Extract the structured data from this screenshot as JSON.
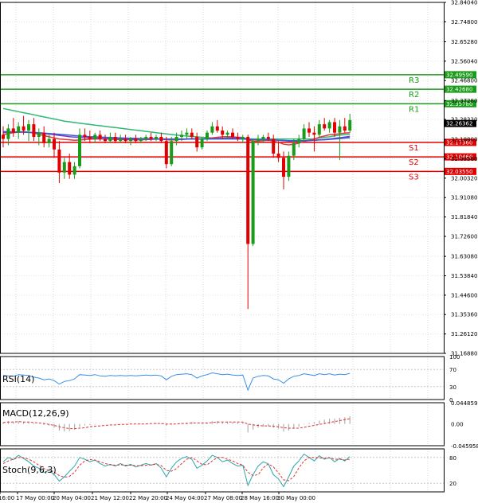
{
  "chart_data": {
    "type": "candlestick",
    "main_price_axis": {
      "ticks": [
        "32.84040",
        "32.74800",
        "32.65280",
        "32.56040",
        "32.46800",
        "32.37280",
        "32.28320",
        "32.18800",
        "32.09560",
        "32.00320",
        "31.91080",
        "31.81840",
        "31.72600",
        "31.63080",
        "31.53840",
        "31.44600",
        "31.35360",
        "31.26120",
        "31.16880"
      ],
      "ylim": [
        31.1688,
        32.8404
      ]
    },
    "current_price": "32.26362",
    "levels": [
      {
        "name": "R3",
        "value": 32.4959,
        "label": "32.49590",
        "color": "#1a9c1a"
      },
      {
        "name": "R2",
        "value": 32.4268,
        "label": "32.42680",
        "color": "#1a9c1a"
      },
      {
        "name": "R1",
        "value": 32.3578,
        "label": "32.35780",
        "color": "#1a9c1a"
      },
      {
        "name": "S1",
        "value": 32.1736,
        "label": "32.17360",
        "color": "#e00000"
      },
      {
        "name": "S2",
        "value": 32.1046,
        "label": "32.10460",
        "color": "#e00000"
      },
      {
        "name": "S3",
        "value": 32.0355,
        "label": "32.03550",
        "color": "#e00000"
      }
    ],
    "candles": [
      {
        "o": 32.21,
        "h": 32.25,
        "l": 32.15,
        "c": 32.19
      },
      {
        "o": 32.19,
        "h": 32.26,
        "l": 32.16,
        "c": 32.24
      },
      {
        "o": 32.24,
        "h": 32.29,
        "l": 32.2,
        "c": 32.22
      },
      {
        "o": 32.22,
        "h": 32.27,
        "l": 32.19,
        "c": 32.25
      },
      {
        "o": 32.25,
        "h": 32.3,
        "l": 32.21,
        "c": 32.23
      },
      {
        "o": 32.23,
        "h": 32.28,
        "l": 32.18,
        "c": 32.26
      },
      {
        "o": 32.26,
        "h": 32.29,
        "l": 32.18,
        "c": 32.2
      },
      {
        "o": 32.2,
        "h": 32.24,
        "l": 32.16,
        "c": 32.22
      },
      {
        "o": 32.22,
        "h": 32.25,
        "l": 32.15,
        "c": 32.17
      },
      {
        "o": 32.17,
        "h": 32.21,
        "l": 32.15,
        "c": 32.19
      },
      {
        "o": 32.19,
        "h": 32.22,
        "l": 32.1,
        "c": 32.14
      },
      {
        "o": 32.14,
        "h": 32.18,
        "l": 31.98,
        "c": 32.03
      },
      {
        "o": 32.03,
        "h": 32.1,
        "l": 32.0,
        "c": 32.08
      },
      {
        "o": 32.08,
        "h": 32.12,
        "l": 32.0,
        "c": 32.02
      },
      {
        "o": 32.02,
        "h": 32.08,
        "l": 32.0,
        "c": 32.06
      },
      {
        "o": 32.06,
        "h": 32.24,
        "l": 32.05,
        "c": 32.21
      },
      {
        "o": 32.21,
        "h": 32.24,
        "l": 32.18,
        "c": 32.2
      },
      {
        "o": 32.2,
        "h": 32.23,
        "l": 32.17,
        "c": 32.19
      },
      {
        "o": 32.19,
        "h": 32.22,
        "l": 32.17,
        "c": 32.21
      },
      {
        "o": 32.21,
        "h": 32.23,
        "l": 32.18,
        "c": 32.19
      },
      {
        "o": 32.19,
        "h": 32.21,
        "l": 32.17,
        "c": 32.18
      },
      {
        "o": 32.18,
        "h": 32.22,
        "l": 32.17,
        "c": 32.2
      },
      {
        "o": 32.2,
        "h": 32.22,
        "l": 32.17,
        "c": 32.18
      },
      {
        "o": 32.18,
        "h": 32.21,
        "l": 32.17,
        "c": 32.19
      },
      {
        "o": 32.19,
        "h": 32.21,
        "l": 32.17,
        "c": 32.18
      },
      {
        "o": 32.18,
        "h": 32.2,
        "l": 32.16,
        "c": 32.19
      },
      {
        "o": 32.19,
        "h": 32.21,
        "l": 32.17,
        "c": 32.18
      },
      {
        "o": 32.18,
        "h": 32.2,
        "l": 32.17,
        "c": 32.19
      },
      {
        "o": 32.19,
        "h": 32.21,
        "l": 32.18,
        "c": 32.2
      },
      {
        "o": 32.2,
        "h": 32.22,
        "l": 32.18,
        "c": 32.19
      },
      {
        "o": 32.19,
        "h": 32.21,
        "l": 32.18,
        "c": 32.2
      },
      {
        "o": 32.2,
        "h": 32.22,
        "l": 32.17,
        "c": 32.18
      },
      {
        "o": 32.18,
        "h": 32.2,
        "l": 32.05,
        "c": 32.07
      },
      {
        "o": 32.07,
        "h": 32.2,
        "l": 32.06,
        "c": 32.18
      },
      {
        "o": 32.18,
        "h": 32.22,
        "l": 32.16,
        "c": 32.2
      },
      {
        "o": 32.2,
        "h": 32.23,
        "l": 32.18,
        "c": 32.21
      },
      {
        "o": 32.21,
        "h": 32.24,
        "l": 32.19,
        "c": 32.22
      },
      {
        "o": 32.22,
        "h": 32.24,
        "l": 32.19,
        "c": 32.2
      },
      {
        "o": 32.2,
        "h": 32.22,
        "l": 32.13,
        "c": 32.15
      },
      {
        "o": 32.15,
        "h": 32.2,
        "l": 32.14,
        "c": 32.19
      },
      {
        "o": 32.19,
        "h": 32.23,
        "l": 32.18,
        "c": 32.22
      },
      {
        "o": 32.22,
        "h": 32.27,
        "l": 32.21,
        "c": 32.25
      },
      {
        "o": 32.25,
        "h": 32.28,
        "l": 32.22,
        "c": 32.23
      },
      {
        "o": 32.23,
        "h": 32.25,
        "l": 32.19,
        "c": 32.21
      },
      {
        "o": 32.21,
        "h": 32.23,
        "l": 32.19,
        "c": 32.22
      },
      {
        "o": 32.22,
        "h": 32.24,
        "l": 32.19,
        "c": 32.2
      },
      {
        "o": 32.2,
        "h": 32.22,
        "l": 32.18,
        "c": 32.19
      },
      {
        "o": 32.19,
        "h": 32.21,
        "l": 32.17,
        "c": 32.2
      },
      {
        "o": 32.2,
        "h": 32.21,
        "l": 31.38,
        "c": 31.69
      },
      {
        "o": 31.69,
        "h": 32.19,
        "l": 31.68,
        "c": 32.18
      },
      {
        "o": 32.18,
        "h": 32.21,
        "l": 32.16,
        "c": 32.19
      },
      {
        "o": 32.19,
        "h": 32.21,
        "l": 32.17,
        "c": 32.2
      },
      {
        "o": 32.2,
        "h": 32.22,
        "l": 32.18,
        "c": 32.19
      },
      {
        "o": 32.19,
        "h": 32.21,
        "l": 32.1,
        "c": 32.12
      },
      {
        "o": 32.12,
        "h": 32.18,
        "l": 32.08,
        "c": 32.1
      },
      {
        "o": 32.1,
        "h": 32.13,
        "l": 31.95,
        "c": 32.01
      },
      {
        "o": 32.01,
        "h": 32.13,
        "l": 31.99,
        "c": 32.11
      },
      {
        "o": 32.11,
        "h": 32.19,
        "l": 32.09,
        "c": 32.17
      },
      {
        "o": 32.17,
        "h": 32.21,
        "l": 32.15,
        "c": 32.19
      },
      {
        "o": 32.19,
        "h": 32.26,
        "l": 32.18,
        "c": 32.24
      },
      {
        "o": 32.24,
        "h": 32.27,
        "l": 32.2,
        "c": 32.22
      },
      {
        "o": 32.22,
        "h": 32.25,
        "l": 32.13,
        "c": 32.21
      },
      {
        "o": 32.21,
        "h": 32.28,
        "l": 32.2,
        "c": 32.26
      },
      {
        "o": 32.26,
        "h": 32.29,
        "l": 32.23,
        "c": 32.24
      },
      {
        "o": 32.24,
        "h": 32.28,
        "l": 32.22,
        "c": 32.27
      },
      {
        "o": 32.27,
        "h": 32.29,
        "l": 32.2,
        "c": 32.22
      },
      {
        "o": 32.22,
        "h": 32.28,
        "l": 32.09,
        "c": 32.25
      },
      {
        "o": 32.25,
        "h": 32.29,
        "l": 32.22,
        "c": 32.23
      },
      {
        "o": 32.23,
        "h": 32.31,
        "l": 32.22,
        "c": 32.28
      }
    ],
    "moving_averages": [
      {
        "color": "#2eb872",
        "values": [
          32.335,
          32.33,
          32.325,
          32.32,
          32.315,
          32.31,
          32.305,
          32.3,
          32.295,
          32.29,
          32.285,
          32.28,
          32.275,
          32.272,
          32.268,
          32.265,
          32.262,
          32.259,
          32.256,
          32.253,
          32.25,
          32.247,
          32.244,
          32.241,
          32.238,
          32.235,
          32.232,
          32.229,
          32.226,
          32.223,
          32.22,
          32.217,
          32.214,
          32.211,
          32.208,
          32.206,
          32.204,
          32.202,
          32.2,
          32.198,
          32.196,
          32.195,
          32.194,
          32.193,
          32.192,
          32.191,
          32.19,
          32.19,
          32.19,
          32.19,
          32.19,
          32.19,
          32.19,
          32.19,
          32.19,
          32.19,
          32.19,
          32.19,
          32.19,
          32.19,
          32.19,
          32.19,
          32.195,
          32.198,
          32.2,
          32.205,
          32.208,
          32.21,
          32.212
        ]
      },
      {
        "color": "#e03a3a",
        "values": [
          32.21,
          32.215,
          32.22,
          32.222,
          32.224,
          32.222,
          32.218,
          32.212,
          32.206,
          32.2,
          32.195,
          32.19,
          32.188,
          32.186,
          32.184,
          32.185,
          32.187,
          32.189,
          32.19,
          32.19,
          32.19,
          32.189,
          32.188,
          32.187,
          32.187,
          32.186,
          32.186,
          32.186,
          32.187,
          32.188,
          32.19,
          32.19,
          32.186,
          32.185,
          32.186,
          32.188,
          32.19,
          32.192,
          32.19,
          32.19,
          32.192,
          32.195,
          32.198,
          32.2,
          32.201,
          32.2,
          32.198,
          32.197,
          32.185,
          32.18,
          32.18,
          32.182,
          32.184,
          32.18,
          32.174,
          32.165,
          32.162,
          32.165,
          32.17,
          32.178,
          32.184,
          32.19,
          32.198,
          32.204,
          32.21,
          32.212,
          32.215,
          32.218,
          32.22
        ]
      },
      {
        "color": "#7a3cc8",
        "values": [
          32.22,
          32.221,
          32.222,
          32.222,
          32.222,
          32.221,
          32.22,
          32.218,
          32.216,
          32.213,
          32.21,
          32.207,
          32.204,
          32.201,
          32.199,
          32.197,
          32.196,
          32.195,
          32.194,
          32.193,
          32.192,
          32.191,
          32.19,
          32.19,
          32.189,
          32.189,
          32.189,
          32.189,
          32.189,
          32.189,
          32.189,
          32.189,
          32.188,
          32.188,
          32.188,
          32.188,
          32.189,
          32.19,
          32.19,
          32.19,
          32.19,
          32.191,
          32.192,
          32.193,
          32.194,
          32.195,
          32.195,
          32.195,
          32.19,
          32.188,
          32.187,
          32.187,
          32.187,
          32.186,
          32.184,
          32.182,
          32.18,
          32.18,
          32.18,
          32.181,
          32.182,
          32.184,
          32.186,
          32.188,
          32.19,
          32.193,
          32.196,
          32.199,
          32.202
        ]
      },
      {
        "color": "#3b5bd6",
        "values": [
          32.225,
          32.225,
          32.224,
          32.224,
          32.223,
          32.222,
          32.221,
          32.22,
          32.218,
          32.216,
          32.214,
          32.212,
          32.21,
          32.208,
          32.206,
          32.204,
          32.203,
          32.201,
          32.2,
          32.199,
          32.198,
          32.197,
          32.196,
          32.195,
          32.194,
          32.193,
          32.193,
          32.192,
          32.192,
          32.191,
          32.191,
          32.19,
          32.19,
          32.19,
          32.19,
          32.19,
          32.19,
          32.19,
          32.19,
          32.19,
          32.19,
          32.19,
          32.19,
          32.19,
          32.19,
          32.19,
          32.19,
          32.19,
          32.188,
          32.187,
          32.186,
          32.186,
          32.186,
          32.185,
          32.184,
          32.183,
          32.182,
          32.182,
          32.182,
          32.182,
          32.183,
          32.184,
          32.185,
          32.186,
          32.188,
          32.19,
          32.192,
          32.194,
          32.196
        ]
      }
    ],
    "rsi": {
      "label": "RSI(14)",
      "ticks": [
        "100",
        "70",
        "30",
        "0"
      ],
      "ylim": [
        0,
        100
      ],
      "values": [
        56,
        55,
        54,
        58,
        57,
        56,
        52,
        50,
        46,
        48,
        44,
        36,
        42,
        44,
        48,
        58,
        57,
        56,
        58,
        55,
        54,
        56,
        55,
        56,
        55,
        56,
        55,
        56,
        57,
        56,
        57,
        55,
        46,
        54,
        58,
        59,
        60,
        58,
        50,
        55,
        58,
        62,
        60,
        58,
        59,
        57,
        56,
        57,
        22,
        50,
        54,
        56,
        55,
        48,
        46,
        38,
        48,
        54,
        56,
        60,
        58,
        56,
        60,
        58,
        60,
        57,
        59,
        58,
        61
      ]
    },
    "macd": {
      "label": "MACD(12,26,9)",
      "ticks": [
        "0.044859",
        "0.00",
        "-0.045958"
      ],
      "ylim": [
        -0.045958,
        0.044859
      ],
      "histogram": [
        0.004,
        0.006,
        0.005,
        0.006,
        0.004,
        0.003,
        0.002,
        0.0,
        -0.002,
        -0.004,
        -0.008,
        -0.014,
        -0.016,
        -0.015,
        -0.012,
        -0.006,
        -0.003,
        -0.002,
        -0.001,
        0.0,
        0.0,
        0.0,
        0.0,
        0.0,
        0.0,
        0.0,
        0.0,
        0.001,
        0.001,
        0.001,
        0.002,
        0.001,
        -0.004,
        -0.002,
        0.0,
        0.002,
        0.003,
        0.004,
        0.0,
        0.001,
        0.003,
        0.006,
        0.006,
        0.005,
        0.005,
        0.004,
        0.003,
        0.003,
        -0.018,
        -0.012,
        -0.008,
        -0.006,
        -0.005,
        -0.008,
        -0.01,
        -0.016,
        -0.014,
        -0.01,
        -0.006,
        -0.001,
        0.002,
        0.004,
        0.007,
        0.009,
        0.011,
        0.011,
        0.013,
        0.014,
        0.016
      ],
      "signal": [
        0.003,
        0.004,
        0.004,
        0.005,
        0.004,
        0.004,
        0.003,
        0.002,
        0.001,
        -0.001,
        -0.003,
        -0.006,
        -0.008,
        -0.01,
        -0.01,
        -0.009,
        -0.008,
        -0.006,
        -0.005,
        -0.004,
        -0.003,
        -0.002,
        -0.002,
        -0.001,
        -0.001,
        0.0,
        0.0,
        0.0,
        0.0,
        0.001,
        0.001,
        0.001,
        0.0,
        0.0,
        0.0,
        0.001,
        0.001,
        0.002,
        0.002,
        0.002,
        0.002,
        0.003,
        0.004,
        0.004,
        0.004,
        0.004,
        0.004,
        0.004,
        0.0,
        -0.002,
        -0.003,
        -0.004,
        -0.004,
        -0.005,
        -0.006,
        -0.008,
        -0.009,
        -0.009,
        -0.009,
        -0.007,
        -0.005,
        -0.003,
        -0.001,
        0.001,
        0.003,
        0.005,
        0.007,
        0.009,
        0.011
      ]
    },
    "stoch": {
      "label": "Stoch(9,6,3)",
      "ticks": [
        "80",
        "20"
      ],
      "ylim": [
        0,
        100
      ],
      "main": [
        70,
        80,
        75,
        85,
        78,
        70,
        60,
        55,
        45,
        50,
        40,
        25,
        35,
        48,
        60,
        80,
        76,
        70,
        74,
        66,
        60,
        64,
        60,
        66,
        60,
        64,
        58,
        62,
        66,
        62,
        66,
        55,
        35,
        55,
        70,
        78,
        82,
        76,
        55,
        62,
        72,
        85,
        80,
        70,
        74,
        66,
        60,
        62,
        15,
        40,
        60,
        70,
        65,
        40,
        30,
        12,
        35,
        60,
        72,
        88,
        80,
        72,
        84,
        76,
        80,
        70,
        78,
        72,
        82
      ],
      "signal": [
        66,
        72,
        76,
        80,
        79,
        76,
        70,
        62,
        54,
        50,
        46,
        38,
        34,
        36,
        46,
        62,
        72,
        75,
        74,
        70,
        66,
        63,
        62,
        63,
        62,
        62,
        61,
        61,
        62,
        63,
        64,
        61,
        50,
        48,
        54,
        66,
        76,
        80,
        72,
        64,
        63,
        72,
        80,
        80,
        76,
        72,
        66,
        62,
        46,
        38,
        40,
        56,
        65,
        58,
        44,
        28,
        26,
        36,
        56,
        72,
        80,
        80,
        79,
        78,
        79,
        76,
        76,
        74,
        76
      ]
    },
    "x_ticks": [
      "16:00",
      "17 May 00:00",
      "20 May 04:00",
      "21 May 12:00",
      "22 May 20:00",
      "24 May 04:00",
      "27 May 08:00",
      "28 May 16:00",
      "30 May 00:00"
    ],
    "colors": {
      "bull": "#1a9c1a",
      "bear": "#e00000",
      "indicator": "#3a8ee6",
      "signal": "#e03030",
      "axis": "#000000"
    }
  }
}
